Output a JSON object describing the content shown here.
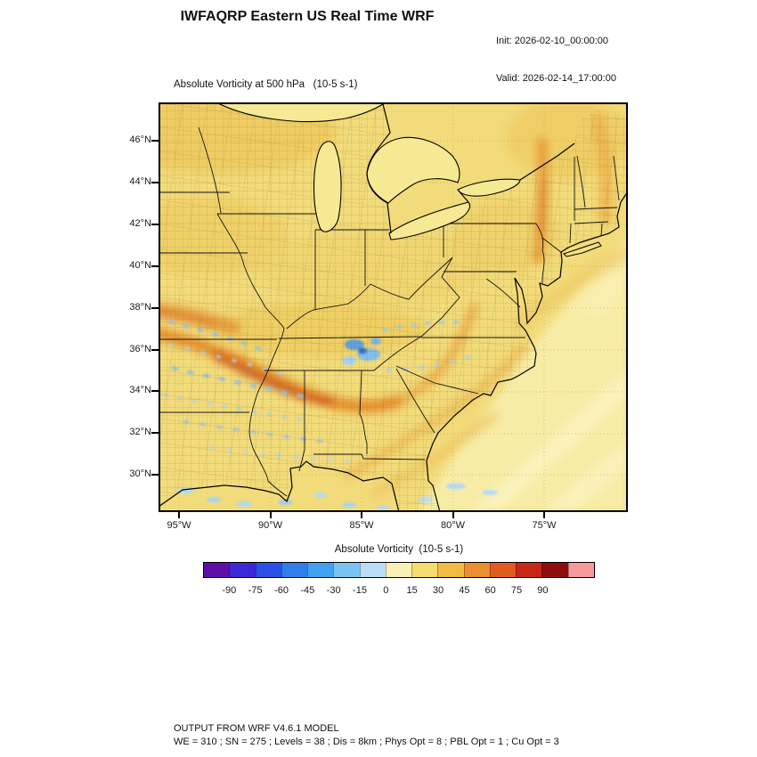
{
  "header": {
    "title": "IWFAQRP Eastern US Real Time WRF",
    "init_label": "Init: 2026-02-10_00:00:00",
    "valid_label": "Valid: 2026-02-14_17:00:00"
  },
  "plot": {
    "field_title": "Absolute Vorticity at 500 hPa   (10-5 s-1)"
  },
  "axes": {
    "lat_ticks": [
      "46°N",
      "44°N",
      "42°N",
      "40°N",
      "38°N",
      "36°N",
      "34°N",
      "32°N",
      "30°N"
    ],
    "lon_ticks": [
      "95°W",
      "90°W",
      "85°W",
      "80°W",
      "75°W"
    ]
  },
  "colorbar": {
    "label": "Absolute Vorticity  (10-5 s-1)",
    "ticks": [
      "-90",
      "-75",
      "-60",
      "-45",
      "-30",
      "-15",
      "0",
      "15",
      "30",
      "45",
      "60",
      "75",
      "90"
    ],
    "colors": [
      "#5D0FA8",
      "#3C28D8",
      "#2B4FE8",
      "#2F7CEC",
      "#41A0F0",
      "#79C3F3",
      "#B9DDF6",
      "#F9F0B6",
      "#F6DC6E",
      "#F2B945",
      "#EC8E2F",
      "#E25B1E",
      "#C92715",
      "#8E0E0E",
      "#F59B9B"
    ]
  },
  "footer": {
    "line1": "OUTPUT FROM WRF V4.6.1 MODEL",
    "line2": "WE = 310 ; SN = 275 ; Levels = 38 ; Dis = 8km ; Phys Opt = 8 ; PBL Opt = 1 ; Cu Opt = 3"
  },
  "chart_data": {
    "type": "heatmap",
    "title": "Absolute Vorticity at 500 hPa (10-5 s-1)",
    "model": "IWFAQRP Eastern US Real Time WRF",
    "variable": "Absolute Vorticity",
    "units": "10-5 s-1",
    "level_hPa": 500,
    "init_time": "2026-02-10_00:00:00",
    "valid_time": "2026-02-14_17:00:00",
    "x_axis": {
      "tick_labels": [
        "95°W",
        "90°W",
        "85°W",
        "80°W",
        "75°W"
      ],
      "approx_range_lon_W": [
        96.1,
        70.4
      ]
    },
    "y_axis": {
      "tick_labels": [
        "46°N",
        "44°N",
        "42°N",
        "40°N",
        "38°N",
        "36°N",
        "34°N",
        "32°N",
        "30°N"
      ],
      "approx_range_lat_N": [
        28.2,
        47.8
      ]
    },
    "grid": "dotted lat-lon graticule every 5 deg lon / 2 deg lat",
    "legend_position": "horizontal colorbar below map",
    "colorbar_levels": [
      -90,
      -75,
      -60,
      -45,
      -30,
      -15,
      0,
      15,
      30,
      45,
      60,
      75,
      90
    ],
    "colorbar_colors": [
      "#5D0FA8",
      "#3C28D8",
      "#2B4FE8",
      "#2F7CEC",
      "#41A0F0",
      "#79C3F3",
      "#B9DDF6",
      "#F9F0B6",
      "#F6DC6E",
      "#F2B945",
      "#EC8E2F",
      "#E25B1E",
      "#C92715",
      "#8E0E0E",
      "#F59B9B"
    ],
    "field_summary": {
      "background_value_range": [
        5,
        25
      ],
      "max_positive_vorticity_streak": {
        "approx_value_range": [
          60,
          95
        ],
        "approx_track_lon_lat": [
          [
            -93.0,
            35.8
          ],
          [
            -90.5,
            34.9
          ],
          [
            -88.0,
            34.2
          ],
          [
            -86.0,
            34.4
          ],
          [
            -84.5,
            35.5
          ]
        ]
      },
      "negative_vorticity_pockets": {
        "approx_value_range": [
          -45,
          -10
        ],
        "approx_locations_lon_lat": [
          [
            -85.0,
            36.0
          ],
          [
            -89.5,
            35.5
          ],
          [
            -92.5,
            36.5
          ],
          [
            -90.0,
            32.5
          ],
          [
            -88.0,
            30.0
          ]
        ]
      },
      "secondary_positive_bands_lon_lat": [
        [
          -75.2,
          43.5
        ],
        [
          -70.9,
          46.0
        ],
        [
          -82.5,
          32.5
        ],
        [
          -79.5,
          35.0
        ]
      ]
    }
  }
}
